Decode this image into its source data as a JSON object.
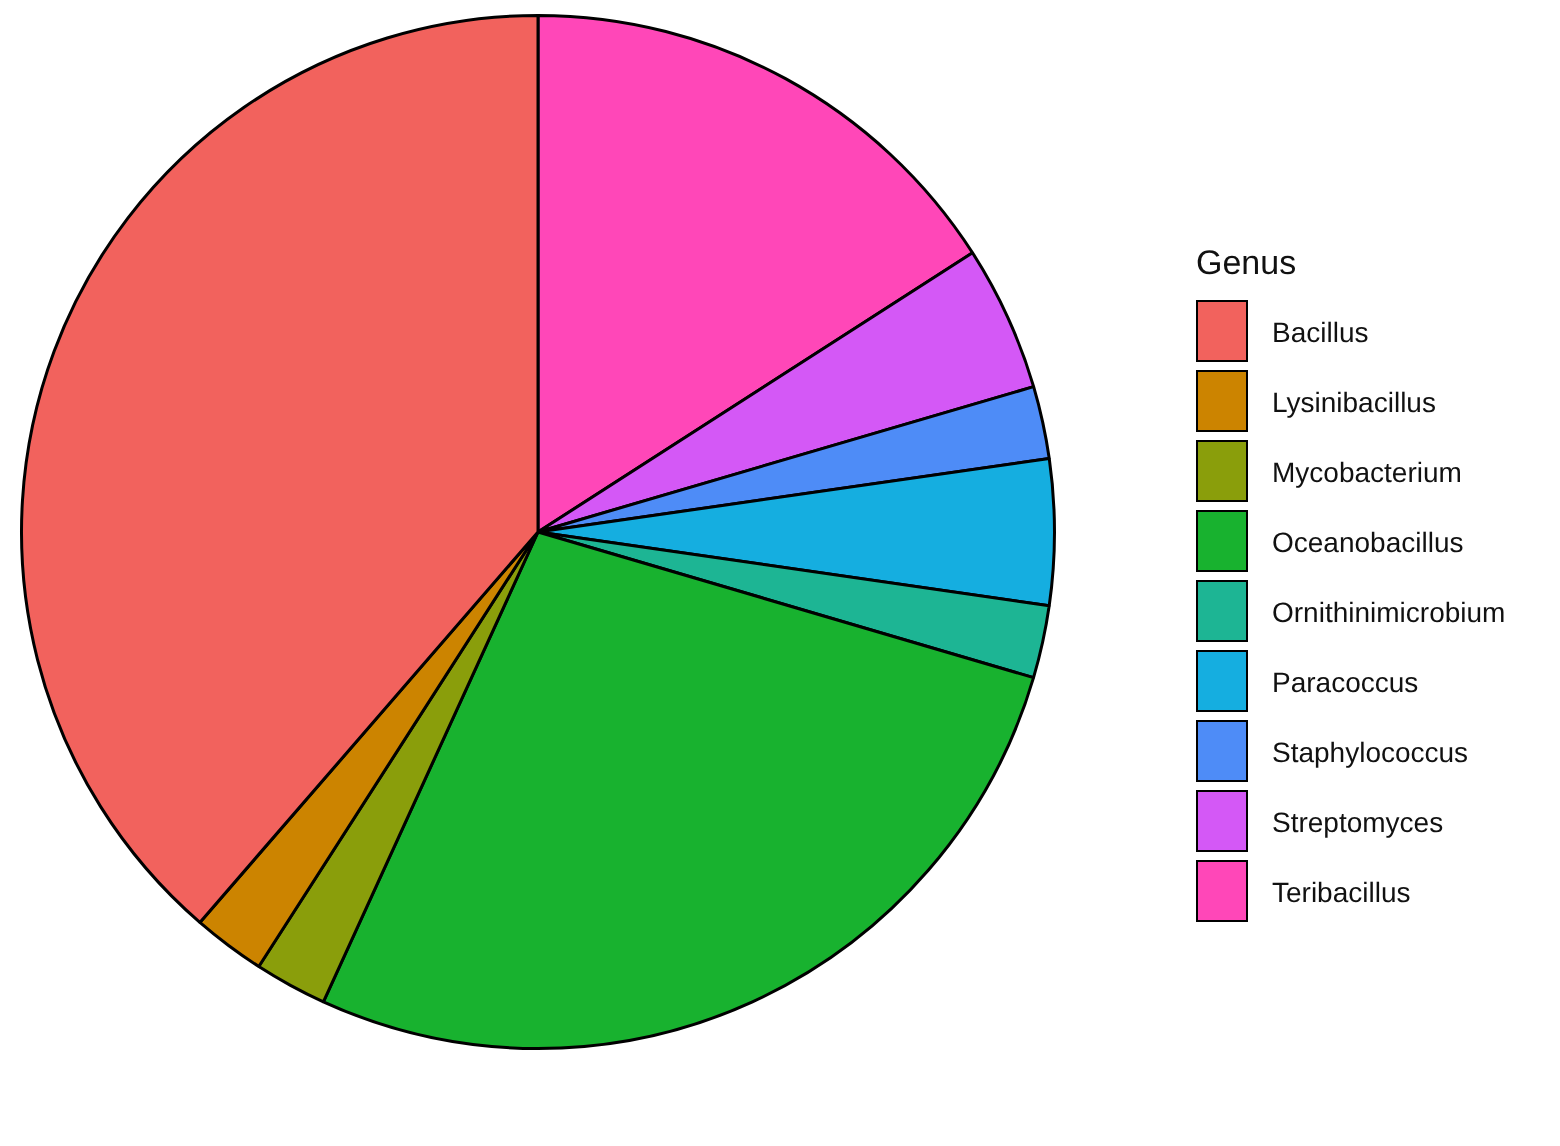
{
  "chart_data": {
    "type": "pie",
    "legend_title": "Genus",
    "legend": "right",
    "categories": [
      "Bacillus",
      "Lysinibacillus",
      "Mycobacterium",
      "Oceanobacillus",
      "Ornithinimicrobium",
      "Paracoccus",
      "Staphylococcus",
      "Streptomyces",
      "Teribacillus"
    ],
    "values": [
      38.64,
      2.27,
      2.27,
      27.27,
      2.27,
      4.55,
      2.27,
      4.55,
      15.91
    ],
    "colors": [
      "#f2625d",
      "#cc8400",
      "#8a9e0b",
      "#18b22f",
      "#1db594",
      "#15aee0",
      "#4e8cf7",
      "#d458f6",
      "#ff47b8"
    ]
  }
}
